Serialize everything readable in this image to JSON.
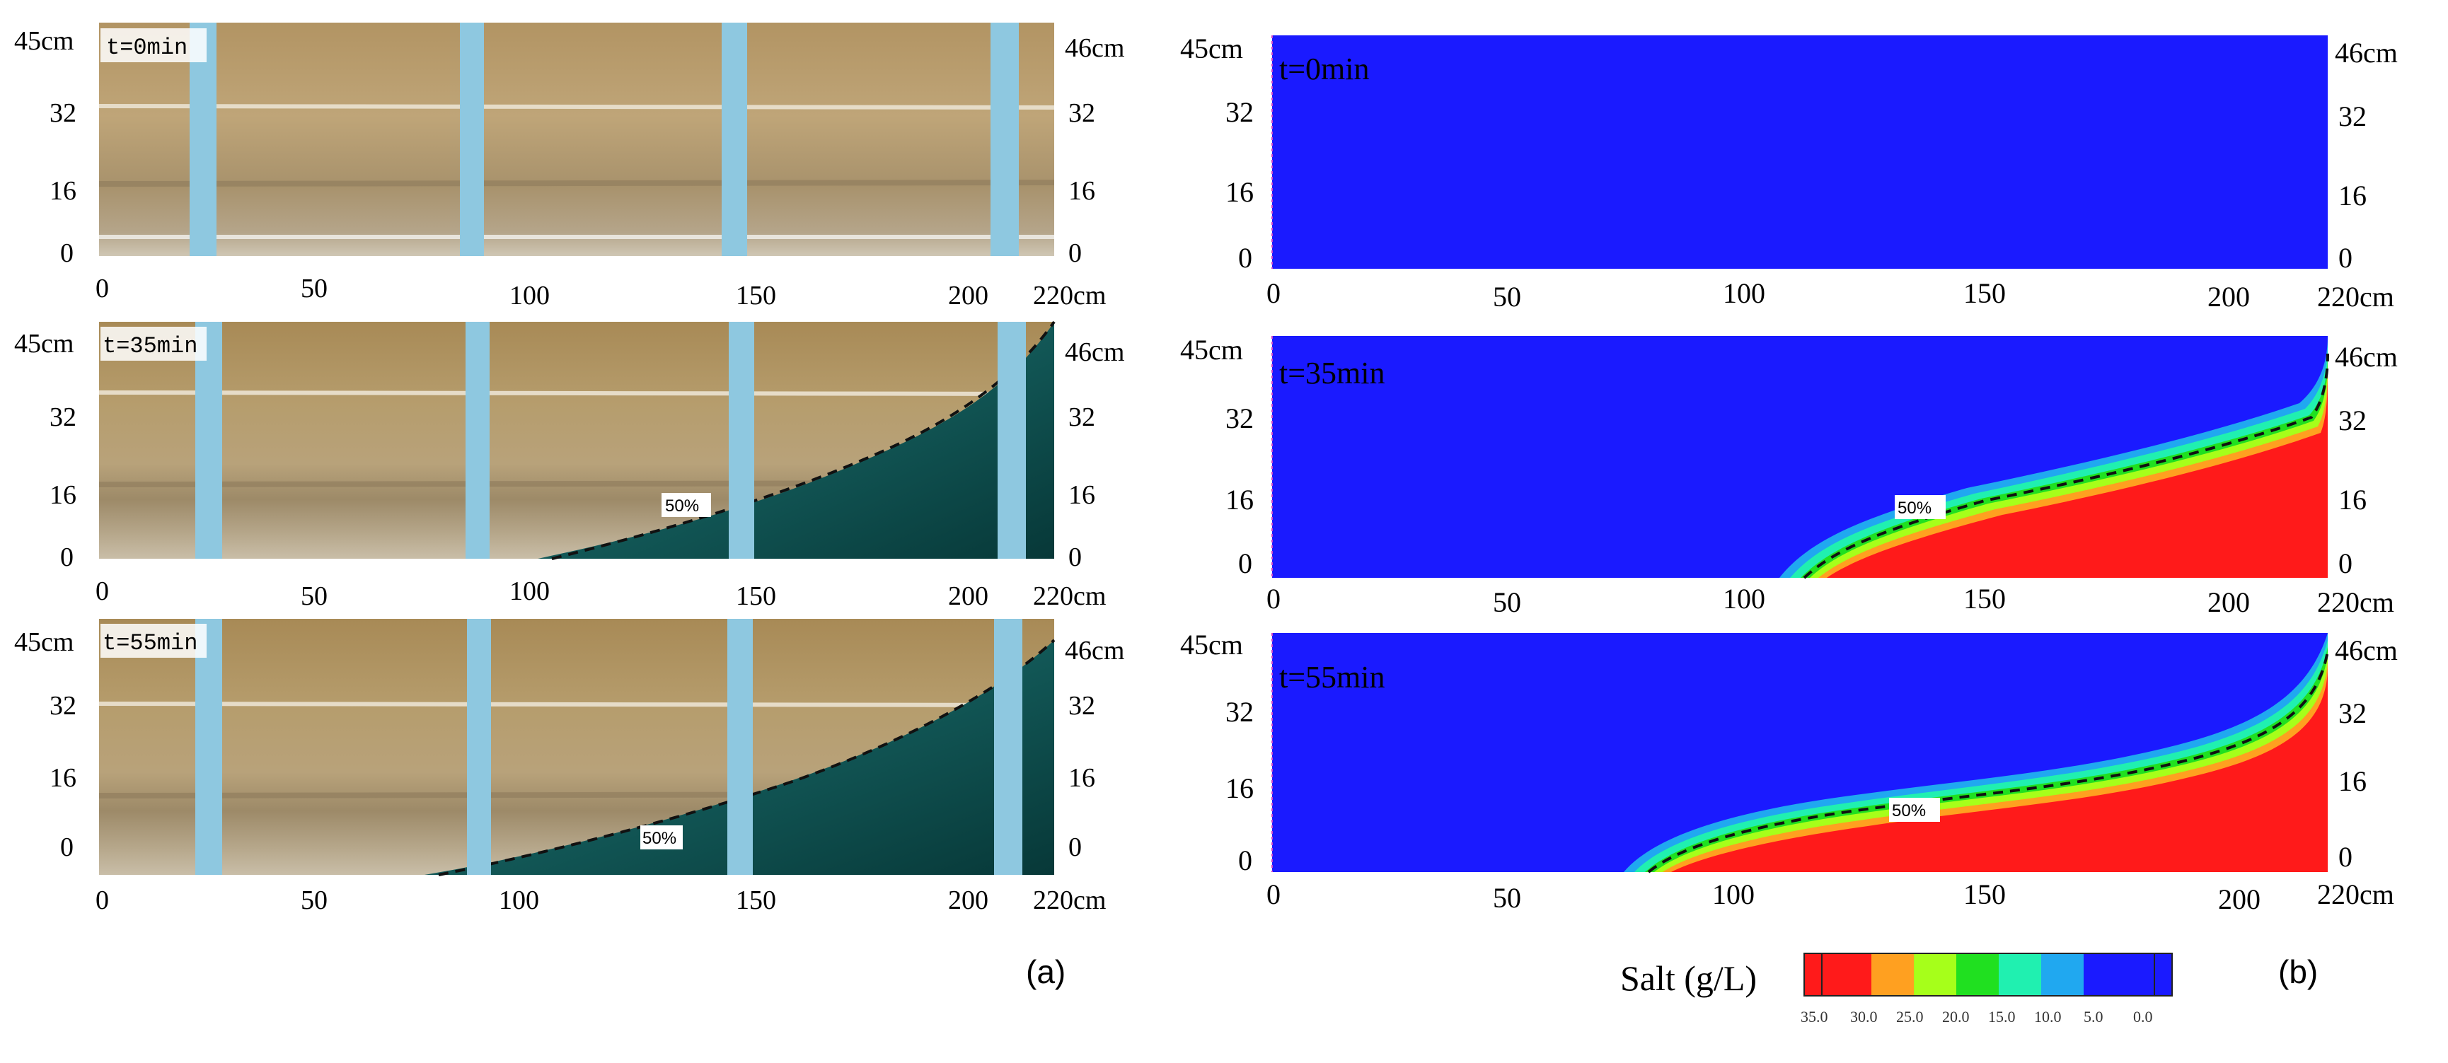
{
  "panel_a": {
    "label": "(a)",
    "rows": [
      {
        "time": "t=0min",
        "pct": "",
        "y_left": [
          "45cm",
          "32",
          "16",
          "0"
        ],
        "y_right": [
          "46cm",
          "32",
          "16",
          "0"
        ],
        "x": [
          "0",
          "50",
          "100",
          "150",
          "200",
          "220cm"
        ]
      },
      {
        "time": "t=35min",
        "pct": "50%",
        "y_left": [
          "45cm",
          "32",
          "16",
          "0"
        ],
        "y_right": [
          "46cm",
          "32",
          "16",
          "0"
        ],
        "x": [
          "0",
          "50",
          "100",
          "150",
          "200",
          "220cm"
        ]
      },
      {
        "time": "t=55min",
        "pct": "50%",
        "y_left": [
          "45cm",
          "32",
          "16",
          "0"
        ],
        "y_right": [
          "46cm",
          "32",
          "16",
          "0"
        ],
        "x": [
          "0",
          "50",
          "100",
          "150",
          "200",
          "220cm"
        ]
      }
    ]
  },
  "panel_b": {
    "label": "(b)",
    "rows": [
      {
        "time": "t=0min",
        "pct": "",
        "y_left": [
          "45cm",
          "32",
          "16",
          "0"
        ],
        "y_right": [
          "46cm",
          "32",
          "16",
          "0"
        ],
        "x": [
          "0",
          "50",
          "100",
          "150",
          "200",
          "220cm"
        ]
      },
      {
        "time": "t=35min",
        "pct": "50%",
        "y_left": [
          "45cm",
          "32",
          "16",
          "0"
        ],
        "y_right": [
          "46cm",
          "32",
          "16",
          "0"
        ],
        "x": [
          "0",
          "50",
          "100",
          "150",
          "200",
          "220cm"
        ]
      },
      {
        "time": "t=55min",
        "pct": "50%",
        "y_left": [
          "45cm",
          "32",
          "16",
          "0"
        ],
        "y_right": [
          "46cm",
          "32",
          "16",
          "0"
        ],
        "x": [
          "0",
          "50",
          "100",
          "150",
          "200",
          "220cm"
        ]
      }
    ]
  },
  "legend": {
    "title": "Salt (g/L)",
    "ticks": [
      "35.0",
      "30.0",
      "25.0",
      "20.0",
      "15.0",
      "10.0",
      "5.0",
      "0.0"
    ],
    "colors": [
      "#ff1a1a",
      "#ffa020",
      "#a6ff1a",
      "#20e020",
      "#20f0b0",
      "#20a8f0",
      "#1a1aff"
    ]
  },
  "colors": {
    "sand": "#b49a6a",
    "saltwater": "#0a4a4a",
    "freshwater": "#1a1aff",
    "saltwater_model": "#ff1a1a",
    "glass_frame": "#8ec8e0"
  },
  "chart_data": [
    {
      "type": "contour",
      "panel": "a",
      "kind": "photograph",
      "series": [
        {
          "name": "t=0min",
          "toe_x": null,
          "interface_50pct": []
        },
        {
          "name": "t=35min",
          "toe_x": 100,
          "interface_50pct": [
            [
              100,
              0
            ],
            [
              150,
              10
            ],
            [
              200,
              30
            ],
            [
              220,
              46
            ]
          ]
        },
        {
          "name": "t=55min",
          "toe_x": 80,
          "interface_50pct": [
            [
              80,
              0
            ],
            [
              100,
              1
            ],
            [
              150,
              12
            ],
            [
              200,
              30
            ],
            [
              220,
              44
            ]
          ]
        }
      ],
      "xlim": [
        0,
        220
      ],
      "ylim": [
        0,
        46
      ]
    },
    {
      "type": "contour",
      "panel": "b",
      "kind": "numerical",
      "series": [
        {
          "name": "t=0min",
          "toe_x": null,
          "interface_50pct": []
        },
        {
          "name": "t=35min",
          "toe_x": 108,
          "interface_50pct": [
            [
              108,
              0
            ],
            [
              130,
              12
            ],
            [
              160,
              20
            ],
            [
              200,
              30
            ],
            [
              215,
              40
            ]
          ]
        },
        {
          "name": "t=55min",
          "toe_x": 77,
          "interface_50pct": [
            [
              77,
              0
            ],
            [
              100,
              8
            ],
            [
              150,
              18
            ],
            [
              200,
              30
            ],
            [
              218,
              44
            ]
          ]
        }
      ],
      "xlim": [
        0,
        220
      ],
      "ylim": [
        0,
        46
      ],
      "colorbar": {
        "title": "Salt (g/L)",
        "range": [
          0,
          35
        ],
        "ticks": [
          35,
          30,
          25,
          20,
          15,
          10,
          5,
          0
        ]
      }
    }
  ]
}
